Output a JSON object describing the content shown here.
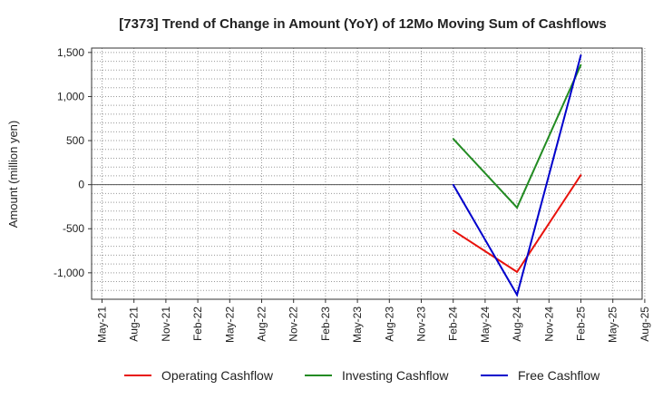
{
  "chart_data": {
    "type": "line",
    "title": "[7373]  Trend of Change in Amount (YoY) of 12Mo Moving Sum of Cashflows",
    "xlabel": "",
    "ylabel": "Amount (million yen)",
    "x_ticks": [
      "May-21",
      "Aug-21",
      "Nov-21",
      "Feb-22",
      "May-22",
      "Aug-22",
      "Nov-22",
      "Feb-23",
      "May-23",
      "Aug-23",
      "Nov-23",
      "Feb-24",
      "May-24",
      "Aug-24",
      "Nov-24",
      "Feb-25",
      "May-25",
      "Aug-25"
    ],
    "y_ticks": [
      "1,500",
      "1,000",
      "500",
      "0",
      "-500",
      "-1,000"
    ],
    "ylim": [
      -1300,
      1550
    ],
    "grid": true,
    "legend_position": "bottom",
    "series": [
      {
        "name": "Operating Cashflow",
        "color": "#e8120c",
        "x": [
          "Feb-24",
          "Aug-24",
          "Feb-25"
        ],
        "values": [
          -520,
          -990,
          110
        ]
      },
      {
        "name": "Investing Cashflow",
        "color": "#228b22",
        "x": [
          "Feb-24",
          "Aug-24",
          "Feb-25"
        ],
        "values": [
          520,
          -260,
          1360
        ]
      },
      {
        "name": "Free Cashflow",
        "color": "#0000cc",
        "x": [
          "Feb-24",
          "Aug-24",
          "Feb-25"
        ],
        "values": [
          0,
          -1250,
          1470
        ]
      }
    ]
  }
}
